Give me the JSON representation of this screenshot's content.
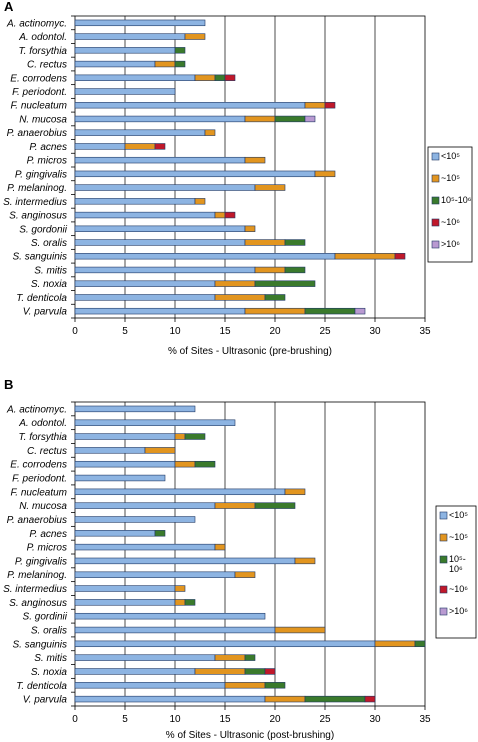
{
  "chart_data": [
    {
      "panel": "A",
      "type": "bar",
      "orientation": "horizontal",
      "stacked": true,
      "xlabel": "% of Sites - Ultrasonic (pre-brushing)",
      "xlim": [
        0,
        35
      ],
      "xticks": [
        "0",
        "5",
        "10",
        "15",
        "20",
        "25",
        "30",
        "35"
      ],
      "grid": "vertical lines",
      "legend_position": "right",
      "categories": [
        "A. actinomyc.",
        "A. odontol.",
        "T. forsythia",
        "C. rectus",
        "E. corrodens",
        "F. periodont.",
        "F. nucleatum",
        "N. mucosa",
        "P. anaerobius",
        "P. acnes",
        "P. micros",
        "P. gingivalis",
        "P. melaninog.",
        "S. intermedius",
        "S. anginosus",
        "S. gordonii",
        "S. oralis",
        "S. sanguinis",
        "S. mitis",
        "S. noxia",
        "T. denticola",
        "V. parvula"
      ],
      "series": [
        {
          "name": "<10⁵",
          "color": "#8db4e2",
          "values": [
            13,
            11,
            10,
            8,
            12,
            10,
            23,
            17,
            13,
            5,
            17,
            24,
            18,
            12,
            14,
            17,
            17,
            26,
            18,
            14,
            14,
            17
          ]
        },
        {
          "name": "~10⁵",
          "color": "#e2951f",
          "values": [
            0,
            2,
            0,
            2,
            2,
            0,
            2,
            3,
            1,
            3,
            2,
            2,
            3,
            1,
            1,
            1,
            4,
            6,
            3,
            4,
            5,
            6
          ]
        },
        {
          "name": "10⁵-10⁶",
          "color": "#3a7a2c",
          "values": [
            0,
            0,
            1,
            1,
            1,
            0,
            0,
            3,
            0,
            0,
            0,
            0,
            0,
            0,
            0,
            0,
            2,
            0,
            2,
            6,
            2,
            5
          ]
        },
        {
          "name": "~10⁶",
          "color": "#c0182a",
          "values": [
            0,
            0,
            0,
            0,
            1,
            0,
            1,
            0,
            0,
            1,
            0,
            0,
            0,
            0,
            1,
            0,
            0,
            1,
            0,
            0,
            0,
            0
          ]
        },
        {
          "name": ">10⁶",
          "color": "#b99ad1",
          "values": [
            0,
            0,
            0,
            0,
            0,
            0,
            0,
            1,
            0,
            0,
            0,
            0,
            0,
            0,
            0,
            0,
            0,
            0,
            0,
            0,
            0,
            1
          ]
        }
      ]
    },
    {
      "panel": "B",
      "type": "bar",
      "orientation": "horizontal",
      "stacked": true,
      "xlabel": "% of Sites - Ultrasonic (post-brushing)",
      "xlim": [
        0,
        35
      ],
      "xticks": [
        "0",
        "5",
        "10",
        "15",
        "20",
        "25",
        "30",
        "35"
      ],
      "grid": "vertical lines",
      "legend_position": "right",
      "categories": [
        "A. actinomyc.",
        "A. odontol.",
        "T. forsythia",
        "C. rectus",
        "E. corrodens",
        "F. periodont.",
        "F. nucleatum",
        "N. mucosa",
        "P. anaerobius",
        "P. acnes",
        "P. micros",
        "P. gingivalis",
        "P. melaninog.",
        "S. intermedius",
        "S. anginosus",
        "S. gordinii",
        "S. oralis",
        "S. sanguinis",
        "S. mitis",
        "S. noxia",
        "T. denticola",
        "V. parvula"
      ],
      "series": [
        {
          "name": "<10⁵",
          "color": "#8db4e2",
          "values": [
            12,
            16,
            10,
            7,
            10,
            9,
            21,
            14,
            12,
            8,
            14,
            22,
            16,
            10,
            10,
            19,
            20,
            30,
            14,
            12,
            15,
            19
          ]
        },
        {
          "name": "~10⁵",
          "color": "#e2951f",
          "values": [
            0,
            0,
            1,
            3,
            2,
            0,
            2,
            4,
            0,
            0,
            1,
            2,
            2,
            1,
            1,
            0,
            5,
            4,
            3,
            5,
            4,
            4
          ]
        },
        {
          "name": "10⁵-10⁶",
          "color": "#3a7a2c",
          "values": [
            0,
            0,
            2,
            0,
            2,
            0,
            0,
            4,
            0,
            1,
            0,
            0,
            0,
            0,
            1,
            0,
            0,
            1,
            1,
            2,
            2,
            6
          ]
        },
        {
          "name": "~10⁶",
          "color": "#c0182a",
          "values": [
            0,
            0,
            0,
            0,
            0,
            0,
            0,
            0,
            0,
            0,
            0,
            0,
            0,
            0,
            0,
            0,
            0,
            0,
            0,
            1,
            0,
            1
          ]
        },
        {
          "name": ">10⁶",
          "color": "#b99ad1",
          "values": [
            0,
            0,
            0,
            0,
            0,
            0,
            0,
            0,
            0,
            0,
            0,
            0,
            0,
            0,
            0,
            0,
            0,
            0,
            0,
            0,
            0,
            0
          ]
        }
      ]
    }
  ]
}
